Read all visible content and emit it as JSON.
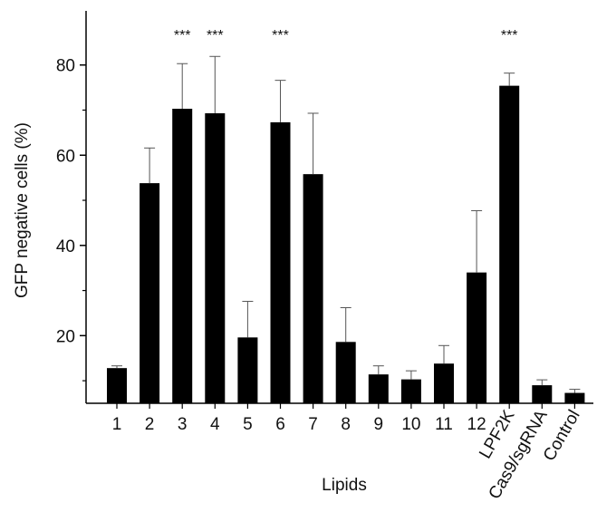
{
  "chart_data": {
    "type": "bar",
    "xlabel": "Lipids",
    "ylabel": "GFP negative cells (%)",
    "ylim": [
      5,
      92
    ],
    "yticks": [
      20,
      40,
      60,
      80
    ],
    "categories": [
      "1",
      "2",
      "3",
      "4",
      "5",
      "6",
      "7",
      "8",
      "9",
      "10",
      "11",
      "12",
      "LPF2K",
      "Cas9/sgRNA",
      "Control"
    ],
    "values": [
      12.8,
      53.8,
      70.3,
      69.3,
      19.6,
      67.3,
      55.8,
      18.6,
      11.4,
      10.3,
      13.8,
      34.0,
      75.4,
      9.0,
      7.3
    ],
    "errors": [
      0.5,
      7.8,
      10.0,
      12.6,
      8.0,
      9.3,
      13.5,
      7.6,
      1.9,
      1.9,
      4.0,
      13.7,
      2.8,
      1.2,
      0.8
    ],
    "annotations": [
      "",
      "",
      "***",
      "***",
      "",
      "***",
      "",
      "",
      "",
      "",
      "",
      "",
      "***",
      "",
      ""
    ],
    "rotated_labels": [
      false,
      false,
      false,
      false,
      false,
      false,
      false,
      false,
      false,
      false,
      false,
      false,
      true,
      true,
      true
    ],
    "bar_color": "#000000",
    "grid": false
  }
}
